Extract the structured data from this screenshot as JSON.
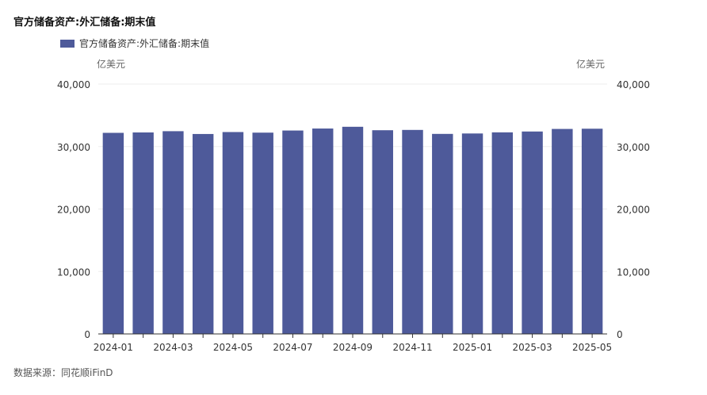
{
  "title": "官方储备资产:外汇储备:期末值",
  "legend_label": "官方储备资产:外汇储备:期末值",
  "unit_left": "亿美元",
  "unit_right": "亿美元",
  "source": "数据来源：同花顺iFinD",
  "colors": {
    "bar": "#4e5a9a",
    "grid": "#eeeeee",
    "axis": "#333333"
  },
  "chart_data": {
    "type": "bar",
    "title": "官方储备资产:外汇储备:期末值",
    "ylabel": "亿美元",
    "ylim": [
      0,
      40000
    ],
    "yticks": [
      0,
      10000,
      20000,
      30000,
      40000
    ],
    "ytick_labels": [
      "0",
      "10,000",
      "20,000",
      "30,000",
      "40,000"
    ],
    "grid": true,
    "legend_position": "top-left",
    "categories": [
      "2024-01",
      "2024-02",
      "2024-03",
      "2024-04",
      "2024-05",
      "2024-06",
      "2024-07",
      "2024-08",
      "2024-09",
      "2024-10",
      "2024-11",
      "2024-12",
      "2025-01",
      "2025-02",
      "2025-03",
      "2025-04",
      "2025-05"
    ],
    "xtick_labels": [
      "2024-01",
      "2024-03",
      "2024-05",
      "2024-07",
      "2024-09",
      "2024-11",
      "2025-01",
      "2025-03",
      "2025-05"
    ],
    "series": [
      {
        "name": "官方储备资产:外汇储备:期末值",
        "values": [
          32193,
          32258,
          32457,
          32008,
          32320,
          32224,
          32564,
          32882,
          33164,
          32611,
          32659,
          32024,
          32090,
          32272,
          32407,
          32817,
          32853
        ]
      }
    ]
  }
}
